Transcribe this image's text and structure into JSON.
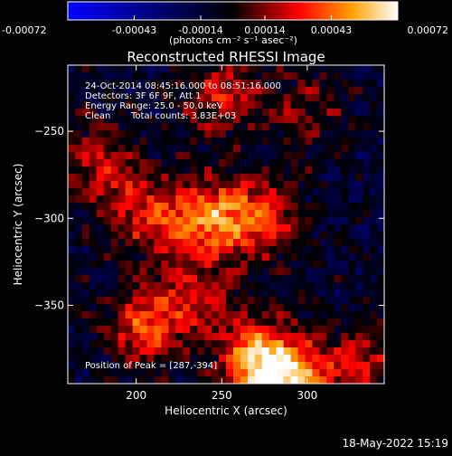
{
  "chart_data": {
    "type": "heatmap",
    "title": "Reconstructed RHESSI Image",
    "xlabel": "Heliocentric X (arcsec)",
    "ylabel": "Heliocentric Y (arcsec)",
    "xlim": [
      160,
      345
    ],
    "ylim": [
      -395,
      -212
    ],
    "x_ticks": [
      200,
      250,
      300
    ],
    "y_ticks": [
      -250,
      -300,
      -350
    ],
    "grid": false,
    "colorbar": {
      "position": "top",
      "range": [
        -0.00072,
        0.00072
      ],
      "ticks": [
        -0.00072,
        -0.00043,
        -0.00014,
        0.00014,
        0.00043,
        0.00072
      ],
      "tick_labels": [
        "-0.00072",
        "-0.00043",
        "-0.00014",
        "0.00014",
        "0.00043",
        "0.00072"
      ],
      "unit_label": "(photons cm⁻² s⁻¹ asec⁻²)"
    },
    "colors": {
      "low": "#0000ff",
      "mid": "#000000",
      "high": "#ffffff",
      "mid_warm": "#ff0000",
      "upper_warm": "#ffa000"
    },
    "sources": [
      {
        "x": 287,
        "y": -394,
        "value": 0.00072
      },
      {
        "x": 270,
        "y": -380,
        "value": 0.00052
      },
      {
        "x": 205,
        "y": -362,
        "value": 0.00045
      },
      {
        "x": 245,
        "y": -300,
        "value": 0.00055
      },
      {
        "x": 275,
        "y": -300,
        "value": 0.0004
      },
      {
        "x": 210,
        "y": -300,
        "value": 0.00035
      },
      {
        "x": 250,
        "y": -230,
        "value": 0.00038
      },
      {
        "x": 300,
        "y": -238,
        "value": 0.00022
      },
      {
        "x": 170,
        "y": -262,
        "value": 0.00018
      },
      {
        "x": 235,
        "y": -345,
        "value": 0.0003
      },
      {
        "x": 330,
        "y": -385,
        "value": 0.00035
      },
      {
        "x": 185,
        "y": -278,
        "value": 0.00026
      }
    ],
    "annotations": {
      "time_range": "24-Oct-2014 08:45:16.000 to 08:51:16.000",
      "detectors": "Detectors: 3F 6F 9F, Att 1",
      "energy_range": "Energy Range: 25.0 - 50.0 keV",
      "algorithm": "Clean",
      "total_counts": "Total counts: 3.83E+03",
      "peak_position": "Position of Peak = [287,-394]"
    }
  },
  "footer": {
    "date_stamp": "18-May-2022 15:19"
  }
}
